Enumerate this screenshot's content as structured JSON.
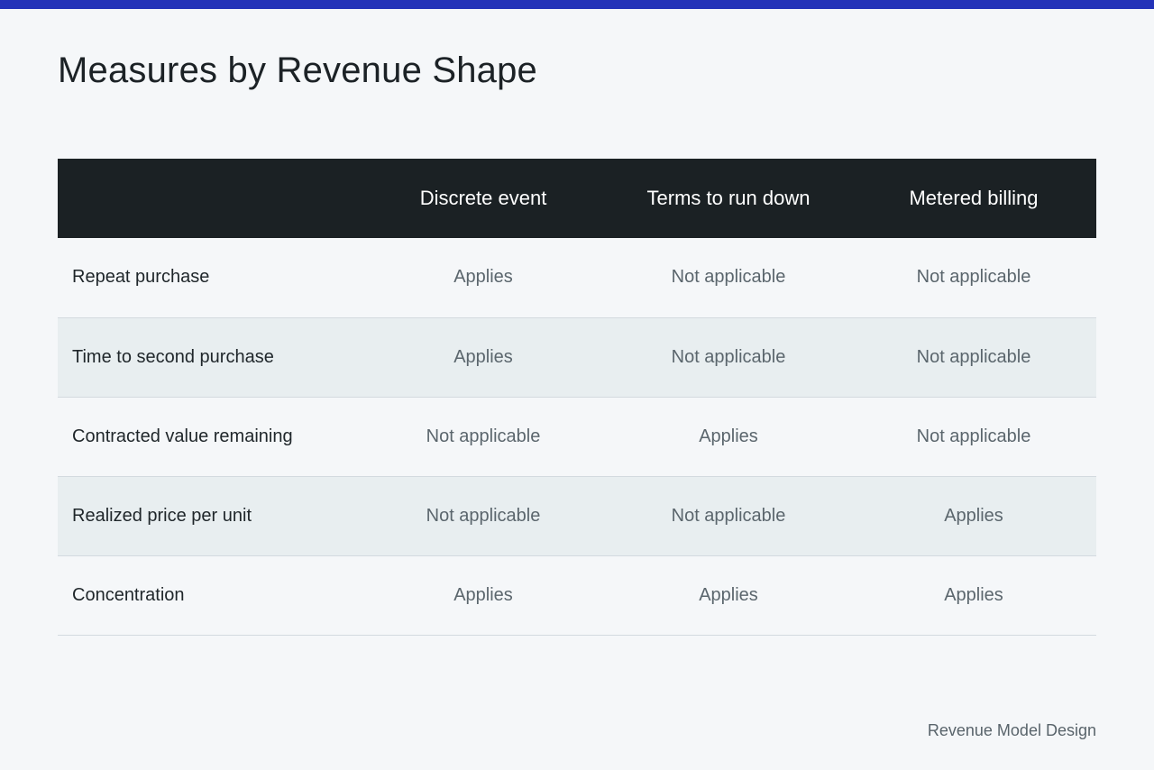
{
  "title": "Measures by Revenue Shape",
  "table": {
    "corner": "",
    "columns": [
      "Discrete event",
      "Terms to run down",
      "Metered billing"
    ],
    "rows": [
      {
        "label": "Repeat purchase",
        "values": [
          "Applies",
          "Not applicable",
          "Not applicable"
        ]
      },
      {
        "label": "Time to second purchase",
        "values": [
          "Applies",
          "Not applicable",
          "Not applicable"
        ]
      },
      {
        "label": "Contracted value remaining",
        "values": [
          "Not applicable",
          "Applies",
          "Not applicable"
        ]
      },
      {
        "label": "Realized price per unit",
        "values": [
          "Not applicable",
          "Not applicable",
          "Applies"
        ]
      },
      {
        "label": "Concentration",
        "values": [
          "Applies",
          "Applies",
          "Applies"
        ]
      }
    ]
  },
  "footer": "Revenue Model Design",
  "colors": {
    "accent_bar": "#2433b8",
    "header_background": "#1b2124",
    "page_background": "#f5f7f9",
    "alt_row_background": "#e8eef0"
  }
}
